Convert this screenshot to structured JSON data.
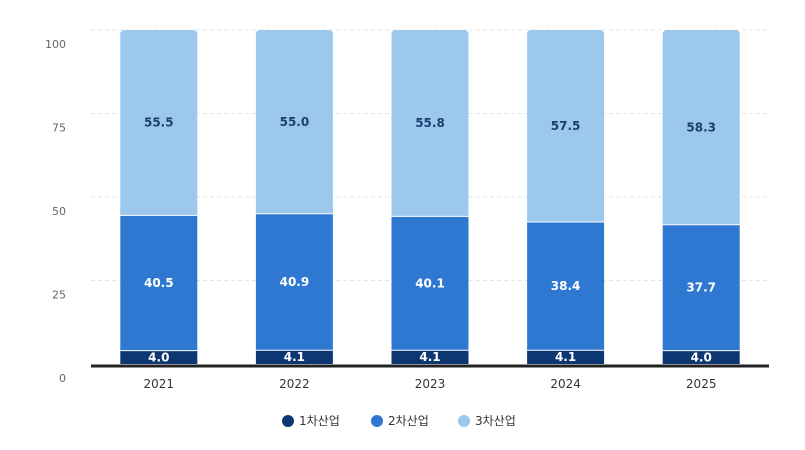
{
  "chart_data": {
    "type": "bar",
    "stacked": true,
    "categories": [
      "2021",
      "2022",
      "2023",
      "2024",
      "2025"
    ],
    "series": [
      {
        "name": "1차산업",
        "values": [
          4.0,
          4.1,
          4.1,
          4.1,
          4.0
        ],
        "color": "#0d3772"
      },
      {
        "name": "2차산업",
        "values": [
          40.5,
          40.9,
          40.1,
          38.4,
          37.7
        ],
        "color": "#2f78d2"
      },
      {
        "name": "3차산업",
        "values": [
          55.5,
          55.0,
          55.8,
          57.5,
          58.3
        ],
        "color": "#9dc8ee"
      }
    ],
    "yticks": [
      "0",
      "25",
      "50",
      "75",
      "100"
    ],
    "ylim": [
      0,
      100
    ],
    "grid": true,
    "legend_position": "bottom"
  }
}
